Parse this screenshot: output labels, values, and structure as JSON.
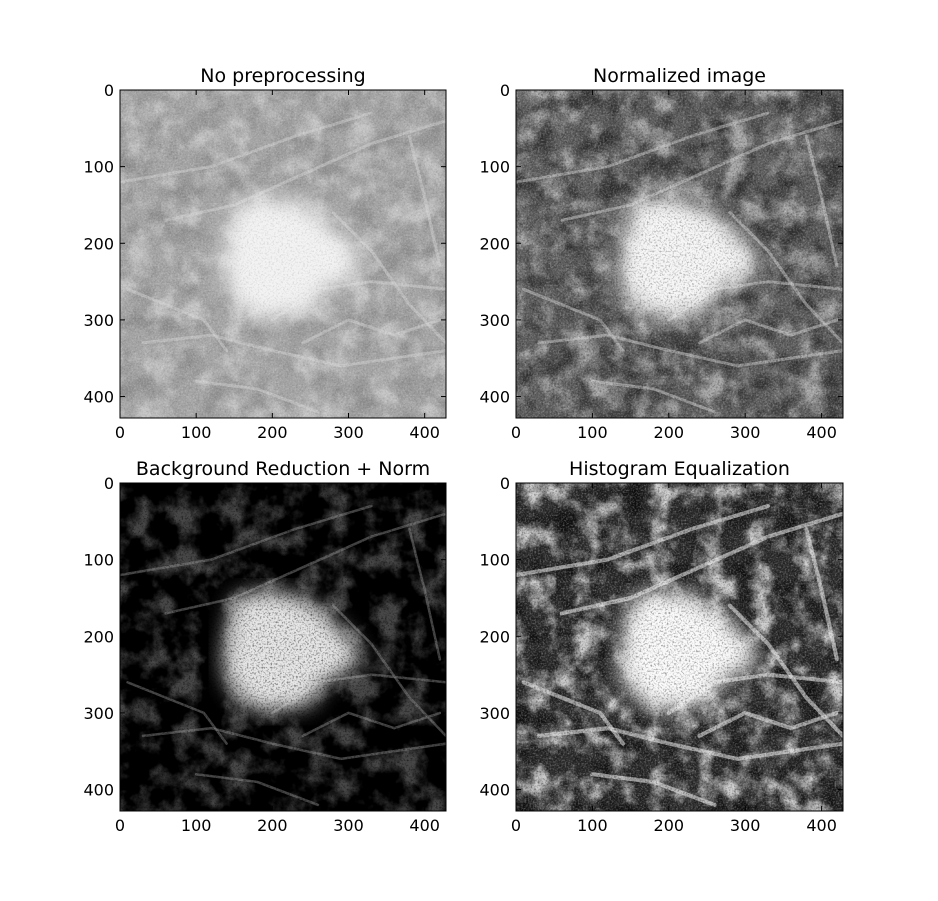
{
  "figure": {
    "panels": [
      {
        "title": "No preprocessing",
        "variant": "raw",
        "x_ticks": [
          "0",
          "100",
          "200",
          "300",
          "400"
        ],
        "y_ticks": [
          "0",
          "100",
          "200",
          "300",
          "400"
        ],
        "x_range": [
          0,
          428
        ],
        "y_range": [
          0,
          428
        ]
      },
      {
        "title": "Normalized image",
        "variant": "normalized",
        "x_ticks": [
          "0",
          "100",
          "200",
          "300",
          "400"
        ],
        "y_ticks": [
          "0",
          "100",
          "200",
          "300",
          "400"
        ],
        "x_range": [
          0,
          428
        ],
        "y_range": [
          0,
          428
        ]
      },
      {
        "title": "Background Reduction + Norm",
        "variant": "background",
        "x_ticks": [
          "0",
          "100",
          "200",
          "300",
          "400"
        ],
        "y_ticks": [
          "0",
          "100",
          "200",
          "300",
          "400"
        ],
        "x_range": [
          0,
          428
        ],
        "y_range": [
          0,
          428
        ]
      },
      {
        "title": "Histogram Equalization",
        "variant": "equalized",
        "x_ticks": [
          "0",
          "100",
          "200",
          "300",
          "400"
        ],
        "y_ticks": [
          "0",
          "100",
          "200",
          "300",
          "400"
        ],
        "x_range": [
          0,
          428
        ],
        "y_range": [
          0,
          428
        ]
      }
    ]
  }
}
